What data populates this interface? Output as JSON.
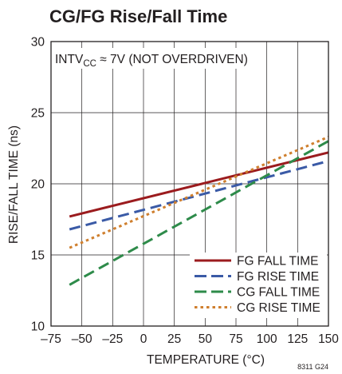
{
  "chart_data": {
    "type": "line",
    "title": "CG/FG Rise/Fall Time",
    "xlabel": "TEMPERATURE (°C)",
    "ylabel": "RISE/FALL TIME (ns)",
    "xlim": [
      -75,
      150
    ],
    "ylim": [
      10,
      30
    ],
    "x_ticks": [
      "–75",
      "–50",
      "–25",
      "0",
      "25",
      "50",
      "75",
      "100",
      "125",
      "150"
    ],
    "y_ticks": [
      "10",
      "15",
      "20",
      "25",
      "30"
    ],
    "grid": true,
    "legend_position": "bottom-right",
    "annotation": {
      "prefix": "INTV",
      "subscript": "CC",
      "suffix": " ≈ 7V (NOT OVERDRIVEN)"
    },
    "figure_id": "8311 G24",
    "series": [
      {
        "name": "FG FALL TIME",
        "color": "#9b1b1e",
        "style": "solid",
        "x": [
          -60,
          150
        ],
        "y": [
          17.7,
          22.2
        ]
      },
      {
        "name": "FG RISE TIME",
        "color": "#3a5aa6",
        "style": "dashed",
        "x": [
          -60,
          150
        ],
        "y": [
          16.8,
          21.6
        ]
      },
      {
        "name": "CG FALL TIME",
        "color": "#2e8b4a",
        "style": "dashed",
        "x": [
          -60,
          150
        ],
        "y": [
          12.9,
          23.0
        ]
      },
      {
        "name": "CG RISE TIME",
        "color": "#cf7f2e",
        "style": "dotted",
        "x": [
          -60,
          150
        ],
        "y": [
          15.5,
          23.3
        ]
      }
    ]
  }
}
